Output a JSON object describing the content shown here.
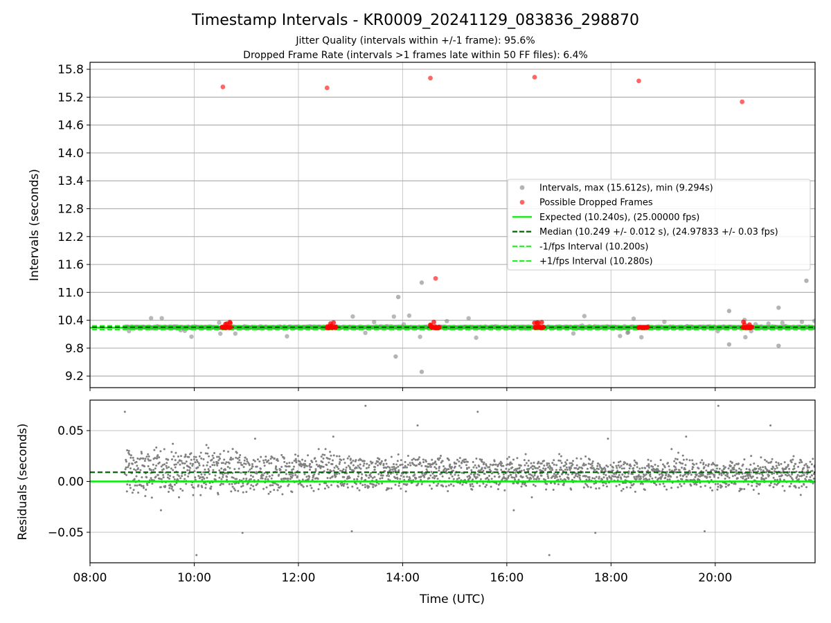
{
  "figure": {
    "title": "Timestamp Intervals - KR0009_20241129_083836_298870",
    "subtitle1": "Jitter Quality (intervals within +/-1 frame): 95.6%",
    "subtitle2": "Dropped Frame Rate (intervals >1 frames late within 50 FF files): 6.4%"
  },
  "colors": {
    "intervals": "#808080",
    "dropped": "#ff0000",
    "expected": "#00ee00",
    "median": "#006400",
    "band": "#22ee22",
    "grid": "#b0b0b0"
  },
  "chart_data": [
    {
      "type": "scatter",
      "ylabel": "Intervals (seconds)",
      "xlim": [
        "08:00",
        "21:55"
      ],
      "ylim": [
        8.95,
        15.95
      ],
      "yticks": [
        "9.2",
        "9.8",
        "10.4",
        "11.0",
        "11.6",
        "12.2",
        "12.8",
        "13.4",
        "14.0",
        "14.6",
        "15.2",
        "15.8"
      ],
      "grid": true,
      "legend_position": "center-right",
      "legend": [
        {
          "label": "Intervals, max (15.612s), min (9.294s)",
          "kind": "marker",
          "color": "#808080"
        },
        {
          "label": "Possible Dropped Frames",
          "kind": "marker",
          "color": "#ff0000"
        },
        {
          "label": "Expected (10.240s), (25.00000 fps)",
          "kind": "solid",
          "color": "#00ee00"
        },
        {
          "label": "Median (10.249 +/- 0.012 s), (24.97833 +/- 0.03 fps)",
          "kind": "dashed",
          "color": "#006400"
        },
        {
          "label": "-1/fps Interval (10.200s)",
          "kind": "dashed",
          "color": "#22ee22"
        },
        {
          "label": "+1/fps Interval (10.280s)",
          "kind": "dashed",
          "color": "#22ee22"
        }
      ],
      "lines": {
        "expected": 10.24,
        "median": 10.249,
        "minus_fps": 10.2,
        "plus_fps": 10.28
      },
      "dropped_frames": [
        {
          "x": "10:33",
          "y": 15.42
        },
        {
          "x": "12:33",
          "y": 15.4
        },
        {
          "x": "14:32",
          "y": 15.61
        },
        {
          "x": "16:32",
          "y": 15.63
        },
        {
          "x": "18:32",
          "y": 15.55
        },
        {
          "x": "20:31",
          "y": 15.1
        },
        {
          "x": "14:38",
          "y": 11.3
        }
      ],
      "dropped_clusters": [
        "10:36",
        "12:37",
        "14:36",
        "16:36",
        "18:36",
        "20:36"
      ],
      "gray_outliers": [
        {
          "x": "14:22",
          "y": 11.21
        },
        {
          "x": "13:55",
          "y": 10.9
        },
        {
          "x": "21:45",
          "y": 11.25
        },
        {
          "x": "21:13",
          "y": 10.67
        },
        {
          "x": "13:52",
          "y": 9.62
        },
        {
          "x": "14:22",
          "y": 9.29
        },
        {
          "x": "20:16",
          "y": 10.6
        },
        {
          "x": "20:16",
          "y": 9.88
        },
        {
          "x": "21:13",
          "y": 9.85
        }
      ],
      "x_range_points": [
        "08:40",
        "21:55"
      ]
    },
    {
      "type": "scatter",
      "xlabel": "Time (UTC)",
      "ylabel": "Residuals (seconds)",
      "xlim": [
        "08:00",
        "21:55"
      ],
      "ylim": [
        -0.08,
        0.08
      ],
      "xticks": [
        "08:00",
        "10:00",
        "12:00",
        "14:00",
        "16:00",
        "18:00",
        "20:00"
      ],
      "yticks": [
        "0.05",
        "0.00",
        "−0.05"
      ],
      "grid": true,
      "lines": {
        "expected": 0.0,
        "median": 0.009
      },
      "x_range_points": [
        "08:40",
        "21:55"
      ]
    }
  ]
}
